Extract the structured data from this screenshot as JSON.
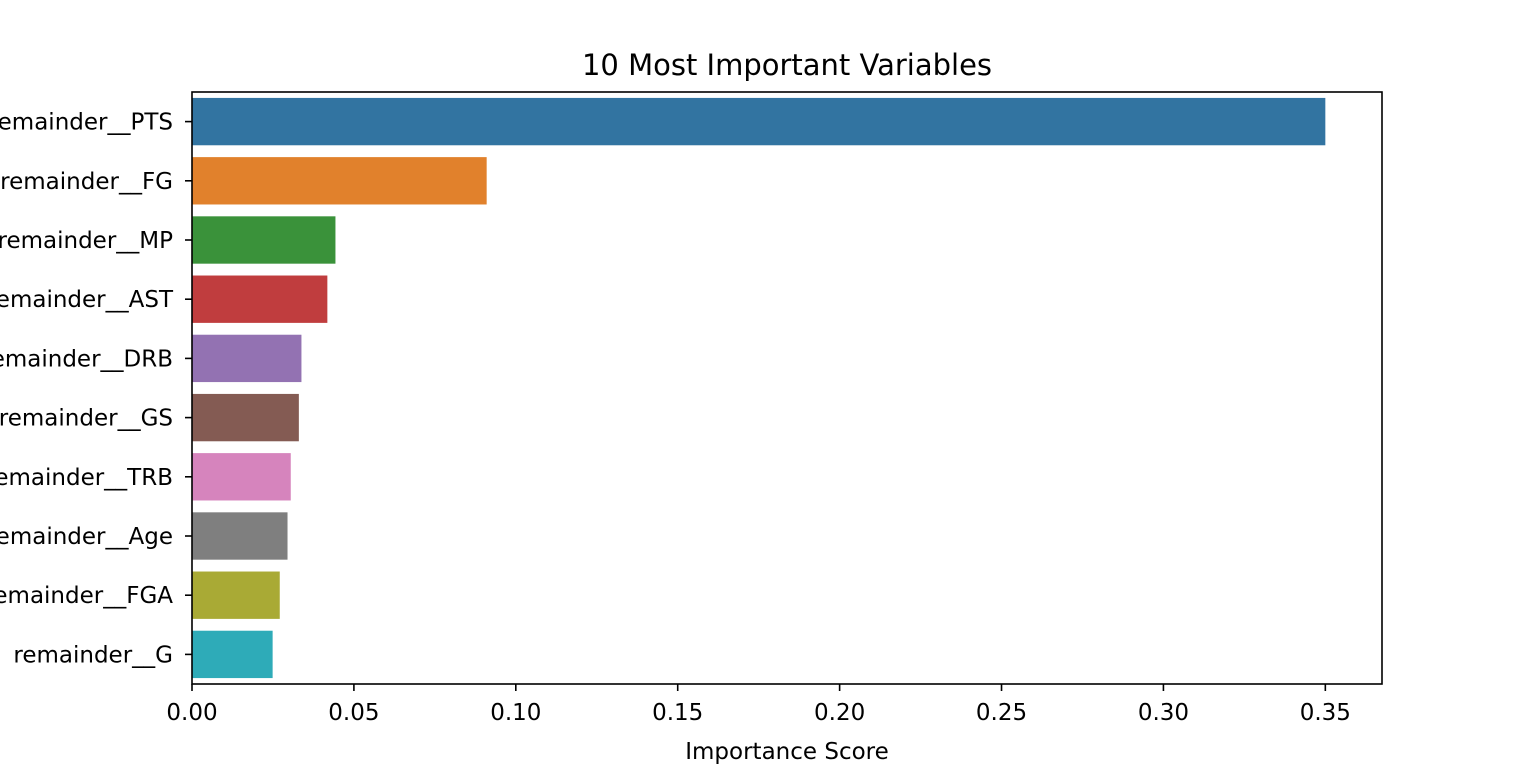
{
  "chart_data": {
    "type": "bar",
    "orientation": "horizontal",
    "title": "10 Most Important Variables",
    "xlabel": "Importance Score",
    "ylabel": "",
    "xlim": [
      0,
      0.3675
    ],
    "grid": false,
    "categories": [
      "remainder__PTS",
      "remainder__FG",
      "remainder__MP",
      "remainder__AST",
      "remainder__DRB",
      "remainder__GS",
      "remainder__TRB",
      "remainder__Age",
      "remainder__FGA",
      "remainder__G"
    ],
    "values": [
      0.35,
      0.091,
      0.0443,
      0.0418,
      0.0338,
      0.033,
      0.0305,
      0.0295,
      0.0271,
      0.0249
    ],
    "colors": [
      "#3274a1",
      "#e1812c",
      "#3a923a",
      "#c03d3e",
      "#9372b2",
      "#845b53",
      "#d684bd",
      "#7f7f7f",
      "#a9aa35",
      "#2eabb8"
    ],
    "x_ticks": [
      0.0,
      0.05,
      0.1,
      0.15,
      0.2,
      0.25,
      0.3,
      0.35
    ],
    "x_tick_labels": [
      "0.00",
      "0.05",
      "0.10",
      "0.15",
      "0.20",
      "0.25",
      "0.30",
      "0.35"
    ]
  }
}
